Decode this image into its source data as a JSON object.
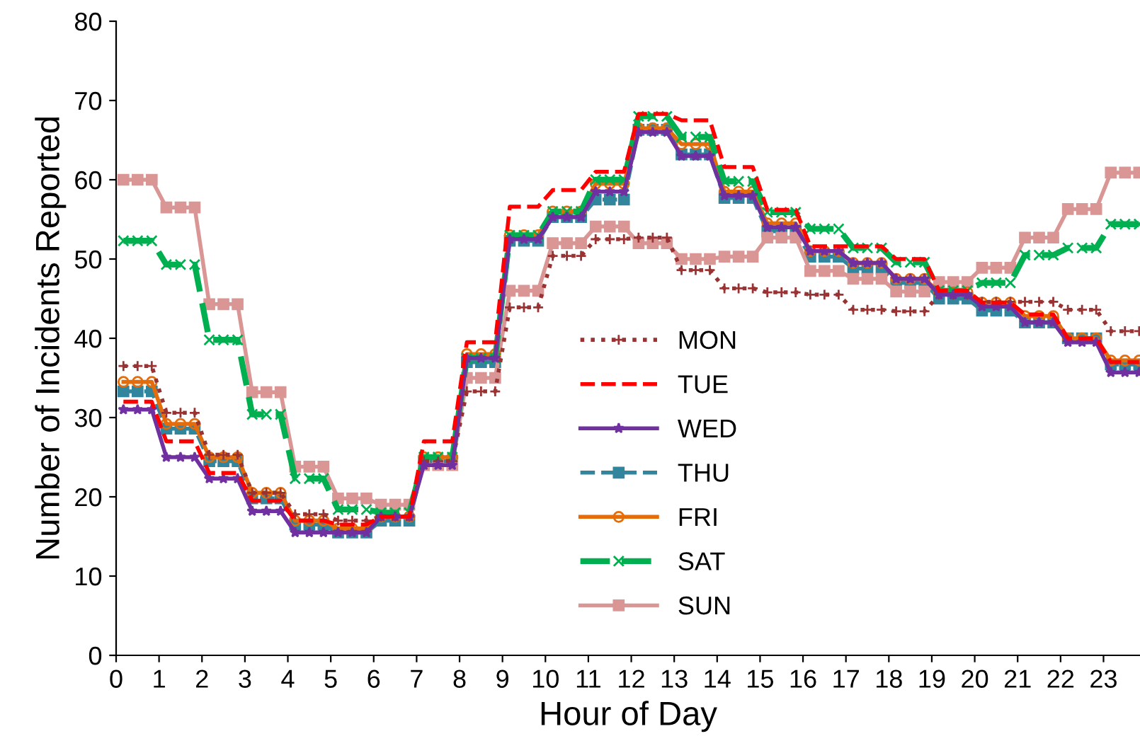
{
  "chart_data": {
    "type": "line",
    "xlabel": "Hour of Day",
    "ylabel": "Number of Incidents Reported",
    "x": [
      0.17,
      0.5,
      0.83,
      1.17,
      1.5,
      1.83,
      2.17,
      2.5,
      2.83,
      3.17,
      3.5,
      3.83,
      4.17,
      4.5,
      4.83,
      5.17,
      5.5,
      5.83,
      6.17,
      6.5,
      6.83,
      7.17,
      7.5,
      7.83,
      8.17,
      8.5,
      8.83,
      9.17,
      9.5,
      9.83,
      10.17,
      10.5,
      10.83,
      11.17,
      11.5,
      11.83,
      12.17,
      12.5,
      12.83,
      13.17,
      13.5,
      13.83,
      14.17,
      14.5,
      14.83,
      15.17,
      15.5,
      15.83,
      16.17,
      16.5,
      16.83,
      17.17,
      17.5,
      17.83,
      18.17,
      18.5,
      18.83,
      19.17,
      19.5,
      19.83,
      20.17,
      20.5,
      20.83,
      21.17,
      21.5,
      21.83,
      22.17,
      22.5,
      22.83,
      23.17,
      23.5,
      23.83
    ],
    "xlim": [
      0,
      23.85
    ],
    "xticks": [
      0,
      1,
      2,
      3,
      4,
      5,
      6,
      7,
      8,
      9,
      10,
      11,
      12,
      13,
      14,
      15,
      16,
      17,
      18,
      19,
      20,
      21,
      22,
      23
    ],
    "ylim": [
      0,
      80
    ],
    "yticks": [
      0,
      10,
      20,
      30,
      40,
      50,
      60,
      70,
      80
    ],
    "legend": "bottom",
    "series": [
      {
        "name": "MON",
        "color": "#993333",
        "line_style": "dotted",
        "marker": "cross",
        "values": [
          36.5,
          36.5,
          36.5,
          30.6,
          30.6,
          30.6,
          25.3,
          25.3,
          25.3,
          20.5,
          20.5,
          20.5,
          17.8,
          17.8,
          17.8,
          17,
          17,
          17,
          17.5,
          17.5,
          17.5,
          24.5,
          24.5,
          24.5,
          33.3,
          33.3,
          33.3,
          43.9,
          43.9,
          43.9,
          50.4,
          50.4,
          50.4,
          52.5,
          52.5,
          52.5,
          52.7,
          52.7,
          52.7,
          48.6,
          48.6,
          48.6,
          46.3,
          46.3,
          46.3,
          45.8,
          45.8,
          45.8,
          45.5,
          45.5,
          45.5,
          43.6,
          43.6,
          43.6,
          43.4,
          43.4,
          43.4,
          45.5,
          45.5,
          45.5,
          44.6,
          44.6,
          44.6,
          44.6,
          44.6,
          44.6,
          43.6,
          43.6,
          43.6,
          40.9,
          40.9,
          40.9
        ]
      },
      {
        "name": "TUE",
        "color": "#ff0000",
        "line_style": "dashed",
        "marker": "none",
        "values": [
          32,
          32,
          32,
          27,
          27,
          27,
          23,
          23,
          23,
          19.5,
          19.5,
          19.5,
          17,
          17,
          17,
          16.5,
          16.5,
          16.5,
          17.5,
          17.5,
          17.5,
          27,
          27,
          27,
          39.5,
          39.5,
          39.5,
          56.6,
          56.6,
          56.6,
          58.7,
          58.7,
          58.7,
          61,
          61,
          61,
          68.3,
          68.3,
          68.3,
          67.5,
          67.5,
          67.5,
          61.6,
          61.6,
          61.6,
          56.2,
          56.2,
          56.2,
          51.6,
          51.6,
          51.6,
          51.6,
          51.6,
          51.6,
          50,
          50,
          50,
          46,
          46,
          46,
          44.5,
          44.5,
          44.5,
          43,
          43,
          43,
          40,
          40,
          40,
          37,
          37,
          37
        ]
      },
      {
        "name": "WED",
        "color": "#7030a0",
        "line_style": "solid",
        "marker": "star",
        "values": [
          31,
          31,
          31,
          25,
          25,
          25,
          22.3,
          22.3,
          22.3,
          18.2,
          18.2,
          18.2,
          15.5,
          15.5,
          15.5,
          15.5,
          15.5,
          15.5,
          17.5,
          17.5,
          17.5,
          24,
          24,
          24,
          37.5,
          37.5,
          37.5,
          52.5,
          52.5,
          52.5,
          55.3,
          55.3,
          55.3,
          58.5,
          58.5,
          58.5,
          66,
          66,
          66,
          63,
          63,
          63,
          58,
          58,
          58,
          54,
          54,
          54,
          51,
          51,
          51,
          49.5,
          49.5,
          49.5,
          47.5,
          47.5,
          47.5,
          45.5,
          45.5,
          45.5,
          44,
          44,
          44,
          42,
          42,
          42,
          39.5,
          39.5,
          39.5,
          35.7,
          35.7,
          35.7
        ]
      },
      {
        "name": "THU",
        "color": "#31859c",
        "line_style": "dashed",
        "marker": "square",
        "values": [
          33.3,
          33.3,
          33.3,
          28.6,
          28.6,
          28.6,
          24.5,
          24.5,
          24.5,
          19.8,
          19.8,
          19.8,
          16.5,
          16.5,
          16.5,
          15.5,
          15.5,
          15.5,
          17,
          17,
          17,
          24.5,
          24.5,
          24.5,
          37,
          37,
          37,
          52.3,
          52.3,
          52.3,
          55.3,
          55.3,
          55.3,
          57.5,
          57.5,
          57.5,
          66.3,
          66.3,
          66.3,
          63.2,
          63.2,
          63.2,
          57.7,
          57.7,
          57.7,
          53.5,
          53.5,
          53.5,
          50.3,
          50.3,
          50.3,
          48.8,
          48.8,
          48.8,
          47,
          47,
          47,
          45,
          45,
          45,
          43.5,
          43.5,
          43.5,
          42,
          42,
          42,
          40,
          40,
          40,
          36.7,
          36.7,
          36.7
        ]
      },
      {
        "name": "FRI",
        "color": "#e46c0a",
        "line_style": "solid",
        "marker": "circle",
        "values": [
          34.5,
          34.5,
          34.5,
          29.2,
          29.2,
          29.2,
          25,
          25,
          25,
          20.5,
          20.5,
          20.5,
          17,
          17,
          17,
          16,
          16,
          16,
          17.5,
          17.5,
          17.5,
          25,
          25,
          25,
          38,
          38,
          38,
          53,
          53,
          53,
          56,
          56,
          56,
          59.5,
          59.5,
          59.5,
          66.5,
          66.5,
          66.5,
          64.5,
          64.5,
          64.5,
          58.5,
          58.5,
          58.5,
          54.5,
          54.5,
          54.5,
          51,
          51,
          51,
          49.5,
          49.5,
          49.5,
          47.5,
          47.5,
          47.5,
          45.8,
          45.8,
          45.8,
          44.5,
          44.5,
          44.5,
          42.8,
          42.8,
          42.8,
          40,
          40,
          40,
          37.2,
          37.2,
          37.2
        ]
      },
      {
        "name": "SAT",
        "color": "#00b050",
        "line_style": "dashed",
        "marker": "x",
        "values": [
          52.3,
          52.3,
          52.3,
          49.3,
          49.3,
          49.3,
          39.8,
          39.8,
          39.8,
          30.4,
          30.4,
          30.4,
          22.3,
          22.3,
          22.3,
          18.4,
          18.4,
          18.4,
          18,
          18,
          18,
          25,
          25,
          25,
          37.5,
          37.5,
          37.5,
          53,
          53,
          53,
          56,
          56,
          56,
          60,
          60,
          60,
          68,
          68,
          68,
          65.4,
          65.4,
          65.4,
          59.8,
          59.8,
          59.8,
          55.9,
          55.9,
          55.9,
          53.8,
          53.8,
          53.8,
          51.4,
          51.4,
          51.4,
          49.6,
          49.6,
          49.6,
          46,
          46,
          46,
          47,
          47,
          47,
          50.5,
          50.5,
          50.5,
          51.4,
          51.4,
          51.4,
          54.4,
          54.4,
          54.4
        ]
      },
      {
        "name": "SUN",
        "color": "#d99694",
        "line_style": "solid",
        "marker": "square",
        "values": [
          60,
          60,
          60,
          56.5,
          56.5,
          56.5,
          44.3,
          44.3,
          44.3,
          33.2,
          33.2,
          33.2,
          23.8,
          23.8,
          23.8,
          19.8,
          19.8,
          19.8,
          19,
          19,
          19,
          24,
          24,
          24,
          35,
          35,
          35,
          46,
          46,
          46,
          52,
          52,
          52,
          54.1,
          54.1,
          54.1,
          52,
          52,
          52,
          50,
          50,
          50,
          50.3,
          50.3,
          50.3,
          52.7,
          52.7,
          52.7,
          48.5,
          48.5,
          48.5,
          47.5,
          47.5,
          47.5,
          45.9,
          45.9,
          45.9,
          47.1,
          47.1,
          47.1,
          48.9,
          48.9,
          48.9,
          52.7,
          52.7,
          52.7,
          56.3,
          56.3,
          56.3,
          60.9,
          60.9,
          60.9
        ]
      }
    ]
  }
}
